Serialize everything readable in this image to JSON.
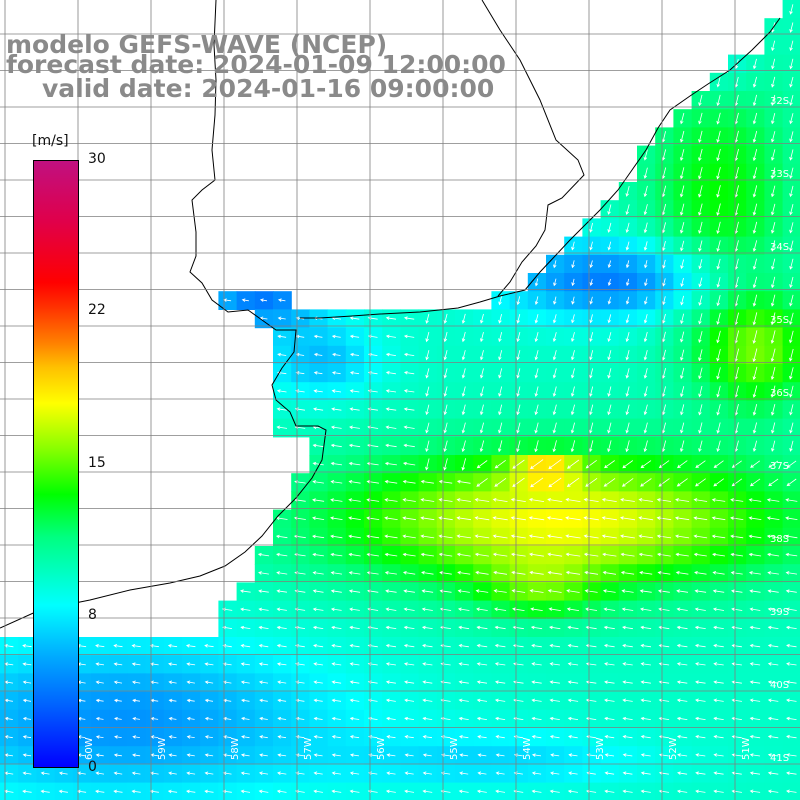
{
  "title": {
    "line1": "modelo GEFS-WAVE (NCEP)",
    "line2": "forecast date: 2024-01-09 12:00:00",
    "line3": "valid date: 2024-01-16 09:00:00"
  },
  "colorbar": {
    "units": "[m/s]",
    "min": 0,
    "max": 30,
    "ticks": [
      "30",
      "22",
      "15",
      "8",
      "0"
    ],
    "tick_values": [
      30,
      22,
      15,
      8,
      0
    ]
  },
  "lat_labels": [
    "32S",
    "33S",
    "34S",
    "35S",
    "36S",
    "37S",
    "38S",
    "39S",
    "40S",
    "41S"
  ],
  "lon_labels": [
    "60W",
    "59W",
    "58W",
    "57W",
    "56W",
    "55W",
    "54W",
    "53W",
    "52W",
    "51W"
  ],
  "colors": {
    "land": "#ffffff",
    "coast": "#000000",
    "grid": "#7f7f7f",
    "arrow": "#ffffff",
    "title_text": "#8a8a8a"
  }
}
